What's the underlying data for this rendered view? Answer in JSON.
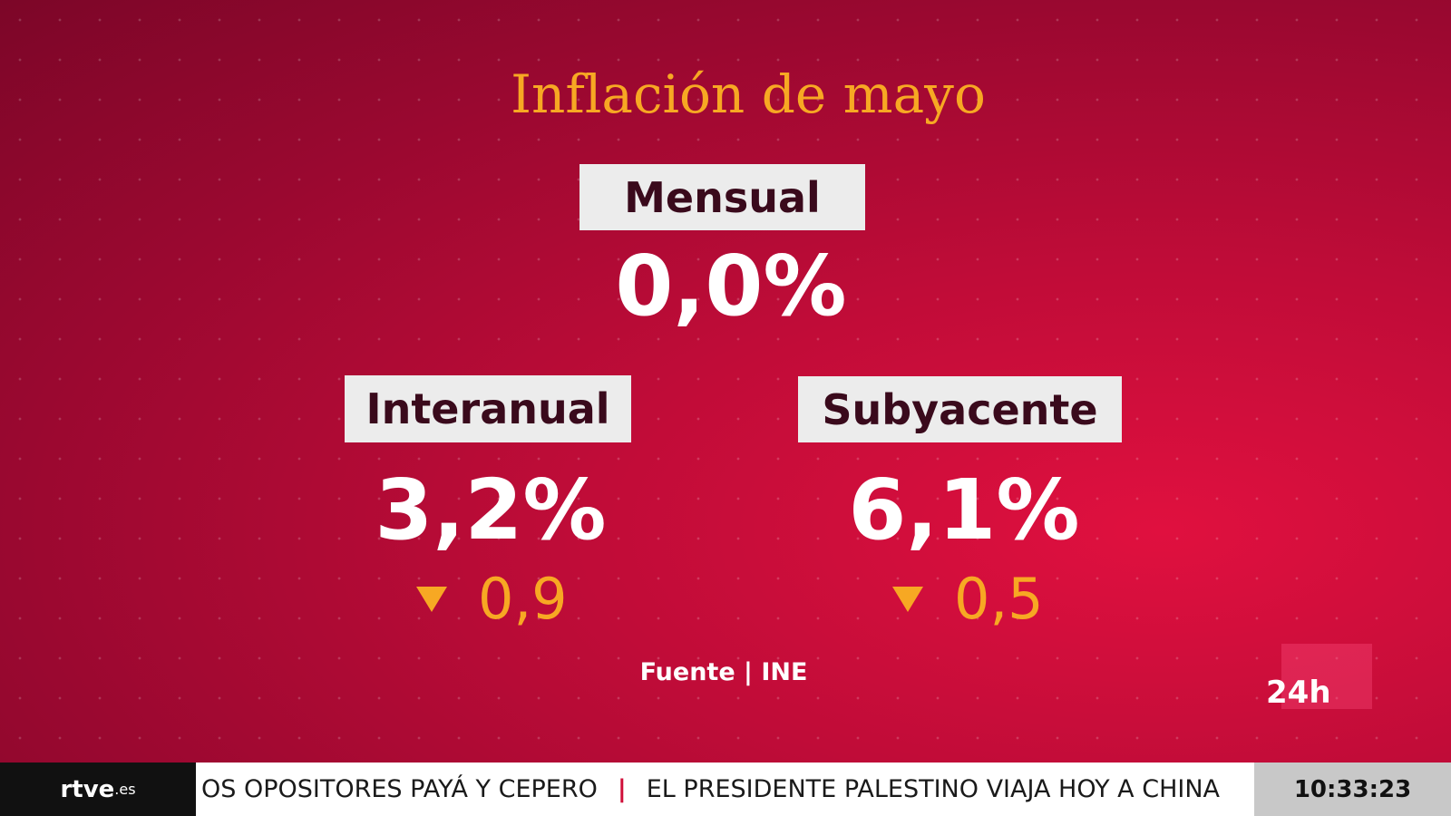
{
  "title": "Inflación de mayo",
  "panels": [
    {
      "label": "Mensual",
      "value": "0,0%"
    },
    {
      "label": "Interanual",
      "value": "3,2%",
      "change": "0,9"
    },
    {
      "label": "Subyacente",
      "value": "6,1%",
      "change": "0,5"
    }
  ],
  "source": "Fuente | INE",
  "channel_logo": "24h",
  "ticker": {
    "logo": "rtve",
    "logo_suffix": ".es",
    "items": [
      "OS OPOSITORES PAYÁ Y CEPERO",
      "EL PRESIDENTE PALESTINO VIAJA HOY A CHINA"
    ],
    "separator": "|",
    "time": "10:33:23"
  }
}
